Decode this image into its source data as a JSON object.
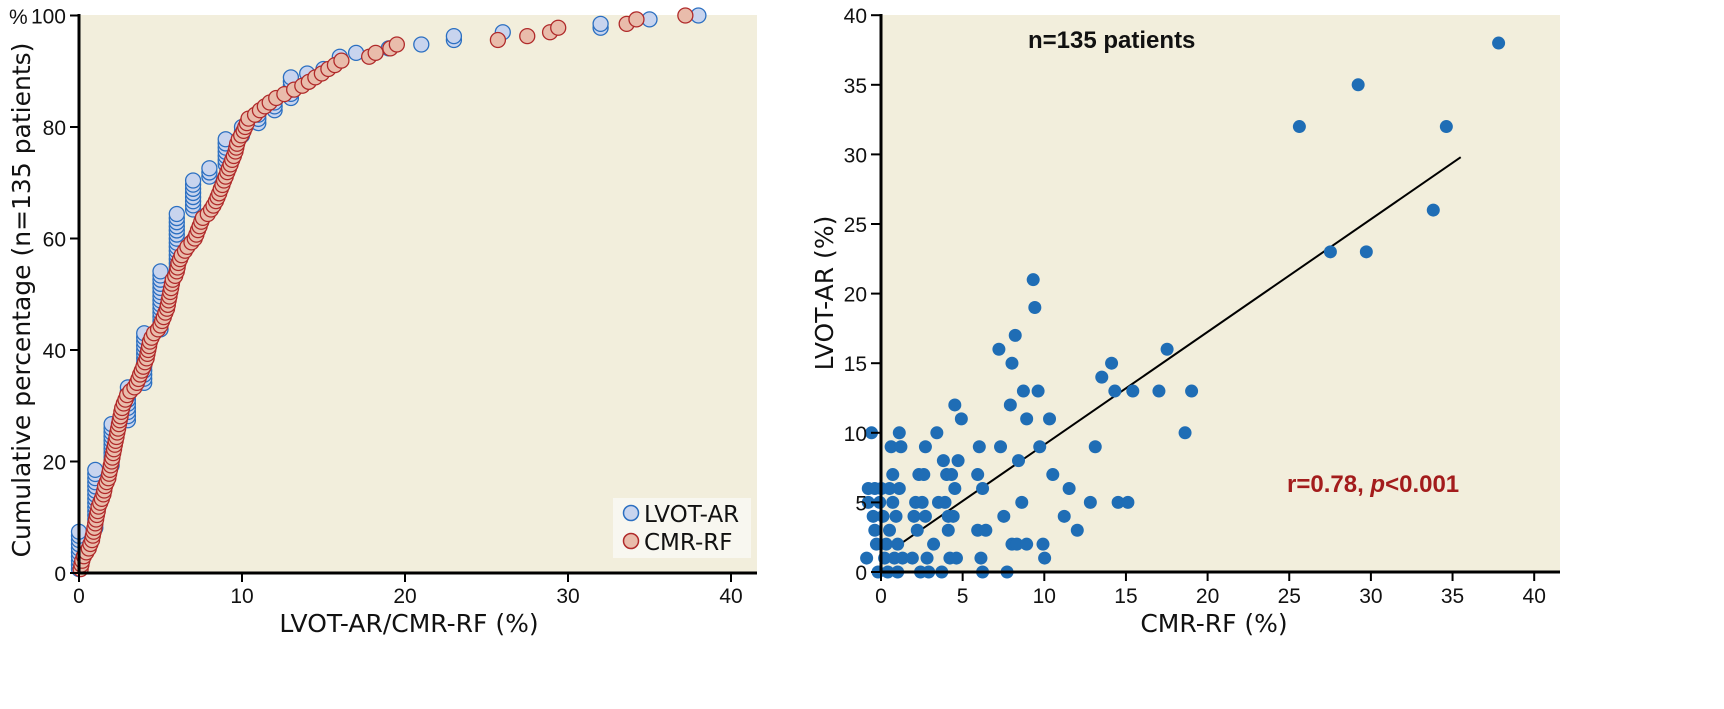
{
  "colors": {
    "plot_bg": "#f2eedc",
    "legend_bg": "#f8f7f0",
    "lvot_fill": "#c8d4ee",
    "lvot_stroke": "#2b6fc1",
    "cmr_fill": "#e9bcab",
    "cmr_stroke": "#b02a2a",
    "scatter": "#1f6db5",
    "annotation_red": "#a31c1c"
  },
  "chart_data": [
    {
      "type": "scatter",
      "title": "",
      "xlabel": "LVOT-AR/CMR-RF (%)",
      "ylabel": "Cumulative percentage (n=135 patients)",
      "y_unit_label": "%",
      "xlim": [
        0,
        41
      ],
      "ylim": [
        0,
        100
      ],
      "xticks": [
        "0",
        "10",
        "20",
        "30",
        "40"
      ],
      "yticks": [
        "0",
        "20",
        "40",
        "60",
        "80",
        "100"
      ],
      "legend_position": "bottom-right",
      "legend": [
        "LVOT-AR",
        "CMR-RF"
      ],
      "series": [
        {
          "name": "LVOT-AR",
          "description": "cumulative distribution, stacked at discrete values",
          "steps": [
            {
              "x": 0,
              "y_from": 0.7,
              "y_to": 7.4
            },
            {
              "x": 1,
              "y_from": 8.1,
              "y_to": 18.5
            },
            {
              "x": 2,
              "y_from": 19.3,
              "y_to": 26.7
            },
            {
              "x": 3,
              "y_from": 27.4,
              "y_to": 33.3
            },
            {
              "x": 4,
              "y_from": 34.1,
              "y_to": 43.0
            },
            {
              "x": 5,
              "y_from": 43.7,
              "y_to": 54.1
            },
            {
              "x": 6,
              "y_from": 54.8,
              "y_to": 64.4
            },
            {
              "x": 7,
              "y_from": 65.2,
              "y_to": 70.4
            },
            {
              "x": 8,
              "y_from": 71.1,
              "y_to": 72.6
            },
            {
              "x": 9,
              "y_from": 73.3,
              "y_to": 77.8
            },
            {
              "x": 10,
              "y_from": 78.5,
              "y_to": 80.0
            },
            {
              "x": 11,
              "y_from": 80.7,
              "y_to": 82.2
            },
            {
              "x": 12,
              "y_from": 83.0,
              "y_to": 84.4
            },
            {
              "x": 13,
              "y_from": 85.2,
              "y_to": 88.9
            },
            {
              "x": 14,
              "y_from": 89.6,
              "y_to": 89.6
            },
            {
              "x": 15,
              "y_from": 90.4,
              "y_to": 90.4
            },
            {
              "x": 16,
              "y_from": 91.9,
              "y_to": 92.6
            },
            {
              "x": 17,
              "y_from": 93.3,
              "y_to": 93.3
            },
            {
              "x": 19,
              "y_from": 94.1,
              "y_to": 94.1
            },
            {
              "x": 21,
              "y_from": 94.8,
              "y_to": 94.8
            },
            {
              "x": 23,
              "y_from": 95.6,
              "y_to": 96.3
            },
            {
              "x": 26,
              "y_from": 97.0,
              "y_to": 97.0
            },
            {
              "x": 32,
              "y_from": 97.8,
              "y_to": 98.5
            },
            {
              "x": 35,
              "y_from": 99.3,
              "y_to": 99.3
            },
            {
              "x": 38,
              "y_from": 100.0,
              "y_to": 100.0
            }
          ]
        },
        {
          "name": "CMR-RF",
          "description": "cumulative distribution, smooth curve",
          "points": [
            [
              0.1,
              0.7
            ],
            [
              0.15,
              1.5
            ],
            [
              0.2,
              2.2
            ],
            [
              0.3,
              3.0
            ],
            [
              0.45,
              3.7
            ],
            [
              0.6,
              4.4
            ],
            [
              0.7,
              5.2
            ],
            [
              0.8,
              5.9
            ],
            [
              0.85,
              6.7
            ],
            [
              0.9,
              7.4
            ],
            [
              0.95,
              8.1
            ],
            [
              1.0,
              8.9
            ],
            [
              1.05,
              9.6
            ],
            [
              1.1,
              10.4
            ],
            [
              1.15,
              11.1
            ],
            [
              1.2,
              11.9
            ],
            [
              1.3,
              12.6
            ],
            [
              1.4,
              13.3
            ],
            [
              1.5,
              14.1
            ],
            [
              1.55,
              14.8
            ],
            [
              1.6,
              15.6
            ],
            [
              1.7,
              16.3
            ],
            [
              1.8,
              17.0
            ],
            [
              1.85,
              17.8
            ],
            [
              1.9,
              18.5
            ],
            [
              1.95,
              19.3
            ],
            [
              2.0,
              20.0
            ],
            [
              2.05,
              20.7
            ],
            [
              2.1,
              21.5
            ],
            [
              2.15,
              22.2
            ],
            [
              2.2,
              23.0
            ],
            [
              2.25,
              23.7
            ],
            [
              2.3,
              24.4
            ],
            [
              2.35,
              25.2
            ],
            [
              2.4,
              25.9
            ],
            [
              2.45,
              26.7
            ],
            [
              2.5,
              27.4
            ],
            [
              2.55,
              28.1
            ],
            [
              2.6,
              28.9
            ],
            [
              2.65,
              29.6
            ],
            [
              2.75,
              30.4
            ],
            [
              2.85,
              31.1
            ],
            [
              2.95,
              31.9
            ],
            [
              3.15,
              32.6
            ],
            [
              3.4,
              33.3
            ],
            [
              3.55,
              34.1
            ],
            [
              3.65,
              34.8
            ],
            [
              3.75,
              35.6
            ],
            [
              3.85,
              36.3
            ],
            [
              3.95,
              37.0
            ],
            [
              4.05,
              37.8
            ],
            [
              4.15,
              38.5
            ],
            [
              4.2,
              39.3
            ],
            [
              4.25,
              40.0
            ],
            [
              4.3,
              40.7
            ],
            [
              4.35,
              41.5
            ],
            [
              4.45,
              42.2
            ],
            [
              4.6,
              43.0
            ],
            [
              4.85,
              43.7
            ],
            [
              5.0,
              44.4
            ],
            [
              5.1,
              45.2
            ],
            [
              5.2,
              45.9
            ],
            [
              5.3,
              46.7
            ],
            [
              5.4,
              47.4
            ],
            [
              5.45,
              48.1
            ],
            [
              5.5,
              48.9
            ],
            [
              5.55,
              49.6
            ],
            [
              5.6,
              50.4
            ],
            [
              5.65,
              51.1
            ],
            [
              5.7,
              51.9
            ],
            [
              5.75,
              52.6
            ],
            [
              5.9,
              53.3
            ],
            [
              6.0,
              54.1
            ],
            [
              6.05,
              54.8
            ],
            [
              6.1,
              55.6
            ],
            [
              6.2,
              56.3
            ],
            [
              6.3,
              57.0
            ],
            [
              6.5,
              57.8
            ],
            [
              6.65,
              58.5
            ],
            [
              6.9,
              59.3
            ],
            [
              7.1,
              60.0
            ],
            [
              7.2,
              60.7
            ],
            [
              7.3,
              61.5
            ],
            [
              7.4,
              62.2
            ],
            [
              7.5,
              63.0
            ],
            [
              7.6,
              63.7
            ],
            [
              7.9,
              64.4
            ],
            [
              8.1,
              65.2
            ],
            [
              8.25,
              65.9
            ],
            [
              8.4,
              66.7
            ],
            [
              8.5,
              67.4
            ],
            [
              8.6,
              68.1
            ],
            [
              8.7,
              68.9
            ],
            [
              8.8,
              69.6
            ],
            [
              8.9,
              70.4
            ],
            [
              9.0,
              71.1
            ],
            [
              9.1,
              71.9
            ],
            [
              9.2,
              72.6
            ],
            [
              9.3,
              73.3
            ],
            [
              9.4,
              74.1
            ],
            [
              9.5,
              74.8
            ],
            [
              9.6,
              75.6
            ],
            [
              9.65,
              76.3
            ],
            [
              9.7,
              77.0
            ],
            [
              9.8,
              77.8
            ],
            [
              9.95,
              78.5
            ],
            [
              10.1,
              79.3
            ],
            [
              10.2,
              80.0
            ],
            [
              10.3,
              80.7
            ],
            [
              10.4,
              81.5
            ],
            [
              10.8,
              82.2
            ],
            [
              11.1,
              83.0
            ],
            [
              11.4,
              83.7
            ],
            [
              11.7,
              84.4
            ],
            [
              12.1,
              85.2
            ],
            [
              12.6,
              85.9
            ],
            [
              13.2,
              86.7
            ],
            [
              13.7,
              87.4
            ],
            [
              14.1,
              88.1
            ],
            [
              14.5,
              88.9
            ],
            [
              14.9,
              89.6
            ],
            [
              15.3,
              90.4
            ],
            [
              15.7,
              91.1
            ],
            [
              16.1,
              91.9
            ],
            [
              17.8,
              92.6
            ],
            [
              18.2,
              93.3
            ],
            [
              19.1,
              94.1
            ],
            [
              19.5,
              94.8
            ],
            [
              25.7,
              95.6
            ],
            [
              27.5,
              96.3
            ],
            [
              28.9,
              97.0
            ],
            [
              29.4,
              97.8
            ],
            [
              33.6,
              98.5
            ],
            [
              34.2,
              99.3
            ],
            [
              37.2,
              100.0
            ]
          ]
        }
      ]
    },
    {
      "type": "scatter",
      "title": "",
      "xlabel": "CMR-RF (%)",
      "ylabel": "LVOT-AR (%)",
      "xlim": [
        0,
        41
      ],
      "ylim": [
        0,
        40
      ],
      "xticks": [
        "0",
        "5",
        "10",
        "15",
        "20",
        "25",
        "30",
        "35",
        "40"
      ],
      "yticks": [
        "0",
        "5",
        "10",
        "15",
        "20",
        "25",
        "30",
        "35",
        "40"
      ],
      "annotations": {
        "n_label": "n=135 patients",
        "r_label": "r=0.78, ",
        "p_italic": "p",
        "p_label": "<0.001"
      },
      "regression_line": {
        "x_start": 0.8,
        "y_start": 1.7,
        "x_end": 35.5,
        "y_end": 29.8
      },
      "points": [
        [
          0.1,
          1
        ],
        [
          0.2,
          6
        ],
        [
          0.2,
          5
        ],
        [
          0.4,
          10
        ],
        [
          0.5,
          4
        ],
        [
          0.6,
          6
        ],
        [
          0.6,
          3
        ],
        [
          0.7,
          2
        ],
        [
          0.8,
          0
        ],
        [
          0.9,
          5
        ],
        [
          1.0,
          6
        ],
        [
          1.1,
          4
        ],
        [
          1.2,
          1
        ],
        [
          1.3,
          2
        ],
        [
          1.4,
          0
        ],
        [
          1.5,
          6
        ],
        [
          1.5,
          3
        ],
        [
          1.6,
          9
        ],
        [
          1.7,
          7
        ],
        [
          1.7,
          5
        ],
        [
          1.8,
          1
        ],
        [
          1.9,
          4
        ],
        [
          2.0,
          2
        ],
        [
          2.0,
          0
        ],
        [
          2.1,
          10
        ],
        [
          2.1,
          6
        ],
        [
          2.2,
          9
        ],
        [
          2.3,
          1
        ],
        [
          2.9,
          1
        ],
        [
          3.0,
          4
        ],
        [
          3.1,
          5
        ],
        [
          3.2,
          3
        ],
        [
          3.3,
          7
        ],
        [
          3.4,
          0
        ],
        [
          3.5,
          5
        ],
        [
          3.6,
          7
        ],
        [
          3.7,
          9
        ],
        [
          3.7,
          4
        ],
        [
          3.8,
          1
        ],
        [
          3.9,
          0
        ],
        [
          4.2,
          2
        ],
        [
          4.4,
          10
        ],
        [
          4.5,
          5
        ],
        [
          4.7,
          0
        ],
        [
          4.8,
          8
        ],
        [
          4.9,
          5
        ],
        [
          5.0,
          7
        ],
        [
          5.1,
          4
        ],
        [
          5.1,
          3
        ],
        [
          5.2,
          1
        ],
        [
          5.3,
          7
        ],
        [
          5.4,
          4
        ],
        [
          5.5,
          12
        ],
        [
          5.5,
          6
        ],
        [
          5.6,
          1
        ],
        [
          5.7,
          8
        ],
        [
          5.9,
          11
        ],
        [
          6.9,
          7
        ],
        [
          6.9,
          3
        ],
        [
          7.0,
          9
        ],
        [
          7.1,
          1
        ],
        [
          7.2,
          6
        ],
        [
          7.2,
          0
        ],
        [
          7.4,
          3
        ],
        [
          8.2,
          16
        ],
        [
          8.3,
          9
        ],
        [
          8.5,
          4
        ],
        [
          8.7,
          0
        ],
        [
          8.9,
          12
        ],
        [
          9.0,
          15
        ],
        [
          9.0,
          2
        ],
        [
          9.2,
          17
        ],
        [
          9.3,
          2
        ],
        [
          9.4,
          8
        ],
        [
          9.6,
          5
        ],
        [
          9.7,
          13
        ],
        [
          9.9,
          11
        ],
        [
          9.9,
          2
        ],
        [
          10.3,
          21
        ],
        [
          10.4,
          19
        ],
        [
          10.6,
          13
        ],
        [
          10.7,
          9
        ],
        [
          10.9,
          2
        ],
        [
          11.0,
          1
        ],
        [
          11.3,
          11
        ],
        [
          11.5,
          7
        ],
        [
          12.2,
          4
        ],
        [
          12.5,
          6
        ],
        [
          13.0,
          3
        ],
        [
          13.8,
          5
        ],
        [
          14.1,
          9
        ],
        [
          14.5,
          14
        ],
        [
          15.1,
          15
        ],
        [
          15.3,
          13
        ],
        [
          15.5,
          5
        ],
        [
          16.1,
          5
        ],
        [
          16.4,
          13
        ],
        [
          18.0,
          13
        ],
        [
          18.5,
          16
        ],
        [
          19.6,
          10
        ],
        [
          20.0,
          13
        ],
        [
          26.6,
          32
        ],
        [
          28.5,
          23
        ],
        [
          30.2,
          35
        ],
        [
          30.7,
          23
        ],
        [
          34.8,
          26
        ],
        [
          35.6,
          32
        ],
        [
          38.8,
          38
        ]
      ]
    }
  ]
}
